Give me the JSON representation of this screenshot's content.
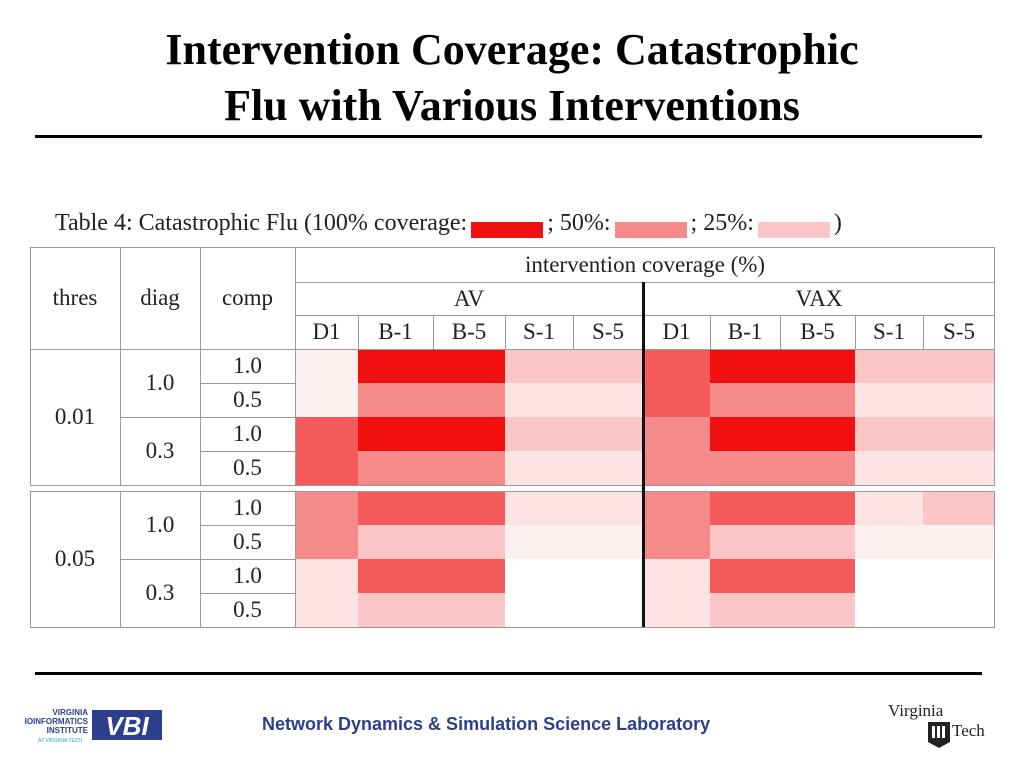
{
  "slide": {
    "title_line1": "Intervention Coverage: Catastrophic",
    "title_line2": "Flu with Various Interventions",
    "footer": "Network Dynamics & Simulation Science Laboratory"
  },
  "logos": {
    "vbi_text_lines": [
      "VIRGINIA",
      "BIOINFORMATICS",
      "INSTITUTE"
    ],
    "vbi_sub": "AT VIRGINIA TECH",
    "vbi_mark": "VBI",
    "vt_line1": "Virginia",
    "vt_line2": "Tech"
  },
  "table": {
    "caption_prefix": "Table 4: Catastrophic Flu (100% coverage:",
    "caption_50": "; 50%:",
    "caption_25": "; 25%:",
    "caption_suffix": ")",
    "colors": {
      "c100": "#f01010",
      "c50": "#f58a8a",
      "c25": "#fcc6c6",
      "light": "#fde4e4",
      "lighter": "#fdf0f0",
      "mid": "#f45a5a",
      "none": "#ffffff"
    },
    "headers": {
      "thres": "thres",
      "diag": "diag",
      "comp": "comp",
      "coverage": "intervention coverage (%)",
      "av": "AV",
      "vax": "VAX",
      "cols": [
        "D1",
        "B-1",
        "B-5",
        "S-1",
        "S-5",
        "D1",
        "B-1",
        "B-5",
        "S-1",
        "S-5"
      ]
    },
    "groups": [
      {
        "thres": "0.01",
        "diags": [
          {
            "diag": "1.0",
            "rows": [
              {
                "comp": "1.0",
                "cells": [
                  "lighter",
                  "c100",
                  "c100",
                  "c25",
                  "c25",
                  "mid",
                  "c100",
                  "c100",
                  "c25",
                  "c25"
                ]
              },
              {
                "comp": "0.5",
                "cells": [
                  "lighter",
                  "c50",
                  "c50",
                  "light",
                  "light",
                  "mid",
                  "c50",
                  "c50",
                  "light",
                  "light"
                ]
              }
            ]
          },
          {
            "diag": "0.3",
            "rows": [
              {
                "comp": "1.0",
                "cells": [
                  "mid",
                  "c100",
                  "c100",
                  "c25",
                  "c25",
                  "c50",
                  "c100",
                  "c100",
                  "c25",
                  "c25"
                ]
              },
              {
                "comp": "0.5",
                "cells": [
                  "mid",
                  "c50",
                  "c50",
                  "light",
                  "light",
                  "c50",
                  "c50",
                  "c50",
                  "light",
                  "light"
                ]
              }
            ]
          }
        ]
      },
      {
        "thres": "0.05",
        "diags": [
          {
            "diag": "1.0",
            "rows": [
              {
                "comp": "1.0",
                "cells": [
                  "c50",
                  "mid",
                  "mid",
                  "light",
                  "light",
                  "c50",
                  "mid",
                  "mid",
                  "light",
                  "c25"
                ]
              },
              {
                "comp": "0.5",
                "cells": [
                  "c50",
                  "c25",
                  "c25",
                  "lighter",
                  "lighter",
                  "c50",
                  "c25",
                  "c25",
                  "lighter",
                  "lighter"
                ]
              }
            ]
          },
          {
            "diag": "0.3",
            "rows": [
              {
                "comp": "1.0",
                "cells": [
                  "light",
                  "mid",
                  "mid",
                  "none",
                  "none",
                  "light",
                  "mid",
                  "mid",
                  "none",
                  "none"
                ]
              },
              {
                "comp": "0.5",
                "cells": [
                  "light",
                  "c25",
                  "c25",
                  "none",
                  "none",
                  "light",
                  "c25",
                  "c25",
                  "none",
                  "none"
                ]
              }
            ]
          }
        ]
      }
    ]
  }
}
